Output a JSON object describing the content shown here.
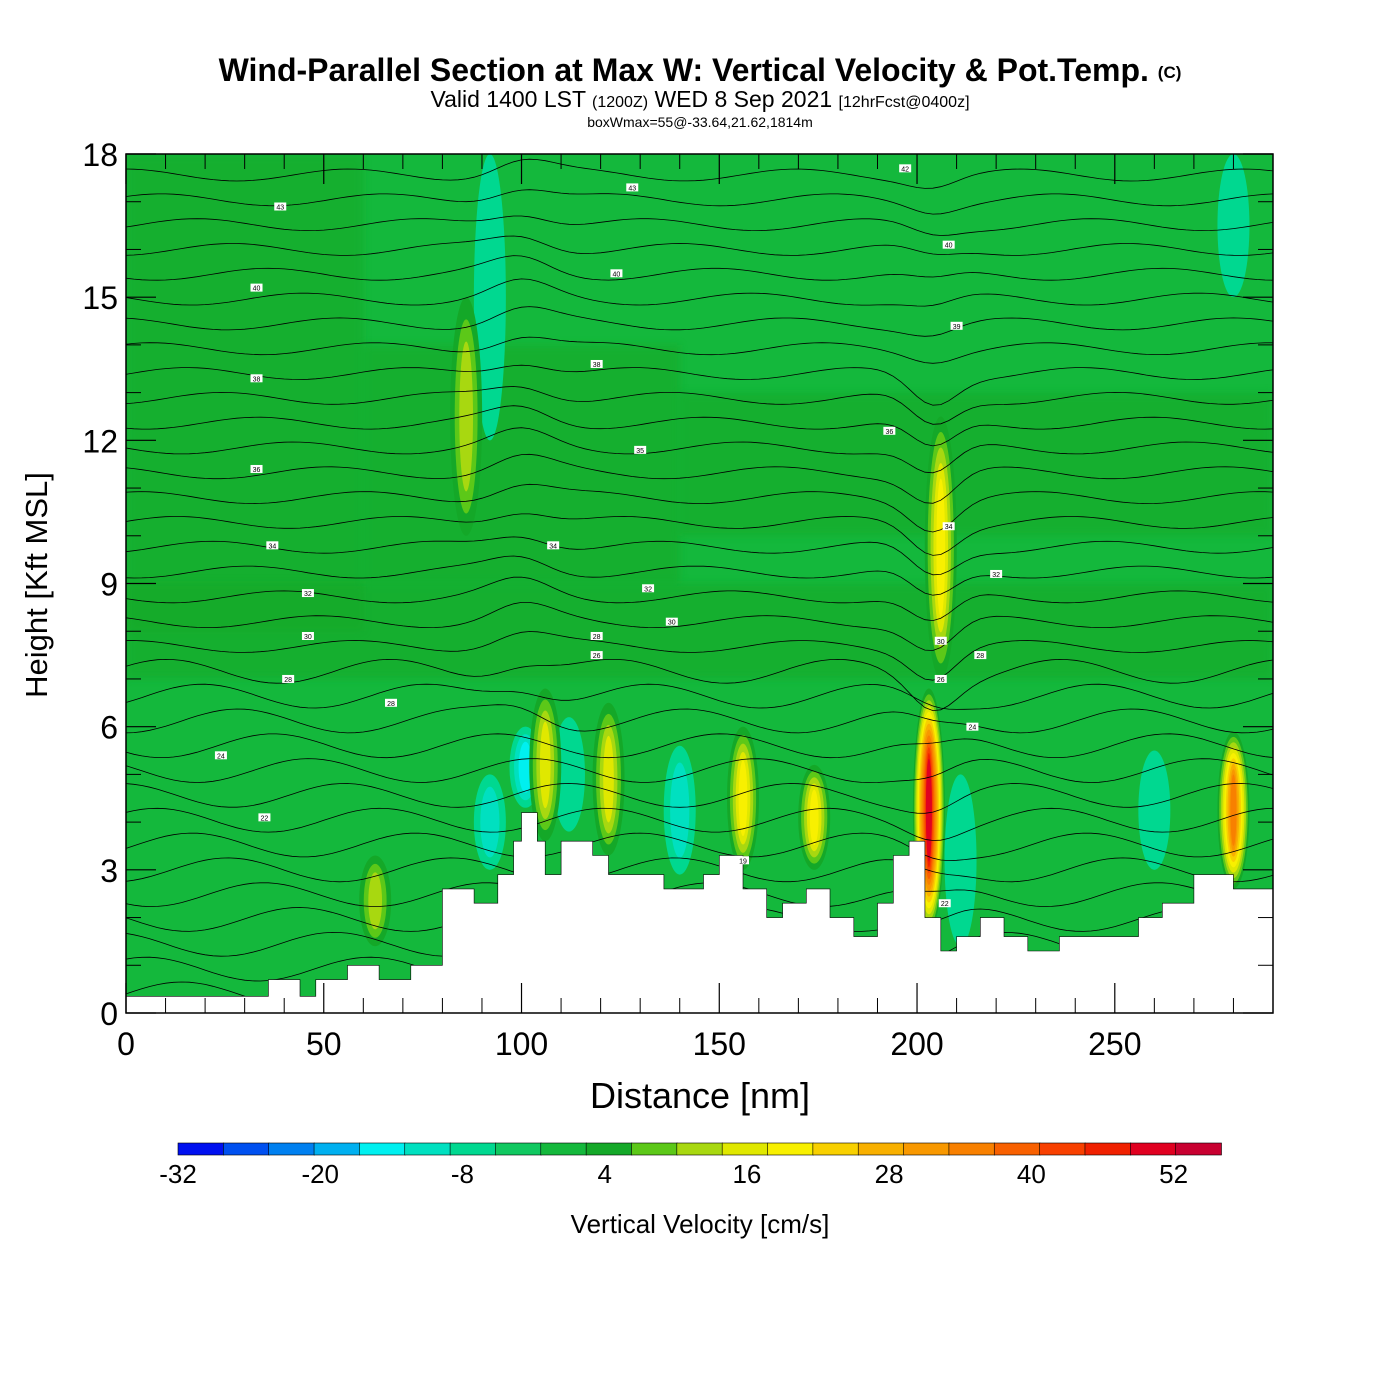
{
  "title": {
    "main": "Wind-Parallel Section at Max W: Vertical Velocity & Pot.Temp.",
    "copyright": "(C)",
    "valid_prefix": "Valid 1400 LST",
    "valid_zulu": "(1200Z)",
    "valid_date": "WED 8 Sep 2021",
    "forecast": "[12hrFcst@0400z]",
    "box_info": "boxWmax=55@-33.64,21.62,1814m"
  },
  "colors": {
    "background_green": "#15c24f",
    "dark_green": "#14b024",
    "teal": "#0fd486",
    "cyan": "#00f0f0",
    "yellow_green": "#a6d80a",
    "yellow": "#f0f000",
    "orange": "#ff8f00",
    "red": "#e8001c",
    "terrain": "#ffffff"
  },
  "chart_data": {
    "type": "heatmap",
    "xlabel": "Distance [nm]",
    "ylabel": "Height [Kft MSL]",
    "xlim": [
      0,
      290
    ],
    "ylim": [
      0,
      18
    ],
    "xticks": [
      0,
      50,
      100,
      150,
      200,
      250
    ],
    "yticks": [
      0,
      3,
      6,
      9,
      12,
      15,
      18
    ],
    "colorbar": {
      "label": "Vertical Velocity [cm/s]",
      "tick_labels": [
        -32,
        -20,
        -8,
        4,
        16,
        28,
        40,
        52
      ],
      "levels": [
        -32,
        -28,
        -24,
        -20,
        -16,
        -12,
        -8,
        -4,
        0,
        4,
        8,
        12,
        16,
        20,
        24,
        28,
        32,
        36,
        40,
        44,
        48,
        52,
        56
      ],
      "colors": [
        "#0010f0",
        "#0050f0",
        "#0080f0",
        "#00b0f0",
        "#00f0f0",
        "#00e0c0",
        "#00d890",
        "#10c860",
        "#14b83c",
        "#14a828",
        "#5cc818",
        "#a8d810",
        "#e0e800",
        "#f8f000",
        "#f8d000",
        "#f8b000",
        "#f89800",
        "#f88000",
        "#f86000",
        "#f84000",
        "#f02000",
        "#e00020",
        "#c80030"
      ]
    },
    "terrain_profile": {
      "x": [
        0,
        28,
        36,
        44,
        48,
        56,
        64,
        72,
        80,
        88,
        94,
        98,
        100,
        104,
        106,
        110,
        118,
        122,
        130,
        136,
        146,
        150,
        156,
        162,
        166,
        172,
        178,
        184,
        190,
        194,
        198,
        202,
        206,
        210,
        216,
        222,
        228,
        236,
        248,
        256,
        262,
        270,
        280,
        290
      ],
      "y": [
        0.35,
        0.35,
        0.7,
        0.35,
        0.7,
        1.0,
        0.7,
        1.0,
        2.6,
        2.3,
        2.9,
        3.6,
        4.2,
        3.6,
        2.9,
        3.6,
        3.3,
        2.9,
        2.9,
        2.6,
        2.9,
        3.3,
        2.6,
        2.0,
        2.3,
        2.6,
        2.0,
        1.6,
        2.3,
        3.3,
        3.6,
        2.0,
        1.3,
        1.6,
        2.0,
        1.6,
        1.3,
        1.6,
        1.6,
        2.0,
        2.3,
        2.9,
        2.6,
        2.6
      ]
    },
    "updraft_columns": [
      {
        "x": 203,
        "y_bottom": 1.7,
        "y_top": 6.8,
        "max_w": 55
      },
      {
        "x": 280,
        "y_bottom": 2.6,
        "y_top": 5.9,
        "max_w": 38
      },
      {
        "x": 156,
        "y_bottom": 3.0,
        "y_top": 6.0,
        "max_w": 22
      },
      {
        "x": 174,
        "y_bottom": 3.0,
        "y_top": 5.2,
        "max_w": 22
      },
      {
        "x": 106,
        "y_bottom": 3.6,
        "y_top": 6.8,
        "max_w": 20
      },
      {
        "x": 122,
        "y_bottom": 3.3,
        "y_top": 6.5,
        "max_w": 18
      },
      {
        "x": 206,
        "y_bottom": 7.0,
        "y_top": 12.5,
        "max_w": 22
      },
      {
        "x": 86,
        "y_bottom": 10.0,
        "y_top": 15.0,
        "max_w": 16
      },
      {
        "x": 63,
        "y_bottom": 1.4,
        "y_top": 3.3,
        "max_w": 14
      }
    ],
    "downdraft_columns": [
      {
        "x": 92,
        "y_bottom": 3.0,
        "y_top": 5.0,
        "min_w": -10
      },
      {
        "x": 140,
        "y_bottom": 2.9,
        "y_top": 5.6,
        "min_w": -10
      },
      {
        "x": 112,
        "y_bottom": 3.8,
        "y_top": 6.2,
        "min_w": -9
      },
      {
        "x": 260,
        "y_bottom": 3.0,
        "y_top": 5.5,
        "min_w": -8
      },
      {
        "x": 101,
        "y_bottom": 4.3,
        "y_top": 6.0,
        "min_w": -16
      },
      {
        "x": 211,
        "y_bottom": 1.4,
        "y_top": 5.0,
        "min_w": -8
      },
      {
        "x": 92,
        "y_bottom": 12.0,
        "y_top": 18.0,
        "min_w": -8
      },
      {
        "x": 280,
        "y_bottom": 15.0,
        "y_top": 18.0,
        "min_w": -8
      }
    ],
    "pot_temp_contour_labels": [
      {
        "text": "43",
        "x": 39,
        "y": 16.9
      },
      {
        "text": "43",
        "x": 128,
        "y": 17.3
      },
      {
        "text": "42",
        "x": 197,
        "y": 17.7
      },
      {
        "text": "40",
        "x": 33,
        "y": 15.2
      },
      {
        "text": "40",
        "x": 124,
        "y": 15.5
      },
      {
        "text": "40",
        "x": 208,
        "y": 16.1
      },
      {
        "text": "39",
        "x": 210,
        "y": 14.4
      },
      {
        "text": "38",
        "x": 33,
        "y": 13.3
      },
      {
        "text": "38",
        "x": 119,
        "y": 13.6
      },
      {
        "text": "36",
        "x": 33,
        "y": 11.4
      },
      {
        "text": "36",
        "x": 193,
        "y": 12.2
      },
      {
        "text": "35",
        "x": 130,
        "y": 11.8
      },
      {
        "text": "34",
        "x": 37,
        "y": 9.8
      },
      {
        "text": "34",
        "x": 108,
        "y": 9.8
      },
      {
        "text": "34",
        "x": 208,
        "y": 10.2
      },
      {
        "text": "32",
        "x": 46,
        "y": 8.8
      },
      {
        "text": "32",
        "x": 132,
        "y": 8.9
      },
      {
        "text": "32",
        "x": 220,
        "y": 9.2
      },
      {
        "text": "30",
        "x": 46,
        "y": 7.9
      },
      {
        "text": "30",
        "x": 138,
        "y": 8.2
      },
      {
        "text": "30",
        "x": 206,
        "y": 7.8
      },
      {
        "text": "28",
        "x": 119,
        "y": 7.9
      },
      {
        "text": "28",
        "x": 216,
        "y": 7.5
      },
      {
        "text": "26",
        "x": 119,
        "y": 7.5
      },
      {
        "text": "26",
        "x": 206,
        "y": 7.0
      },
      {
        "text": "28",
        "x": 41,
        "y": 7.0
      },
      {
        "text": "28",
        "x": 67,
        "y": 6.5
      },
      {
        "text": "24",
        "x": 24,
        "y": 5.4
      },
      {
        "text": "24",
        "x": 214,
        "y": 6.0
      },
      {
        "text": "22",
        "x": 35,
        "y": 4.1
      },
      {
        "text": "19",
        "x": 156,
        "y": 3.2
      },
      {
        "text": "22",
        "x": 207,
        "y": 2.3
      }
    ]
  }
}
